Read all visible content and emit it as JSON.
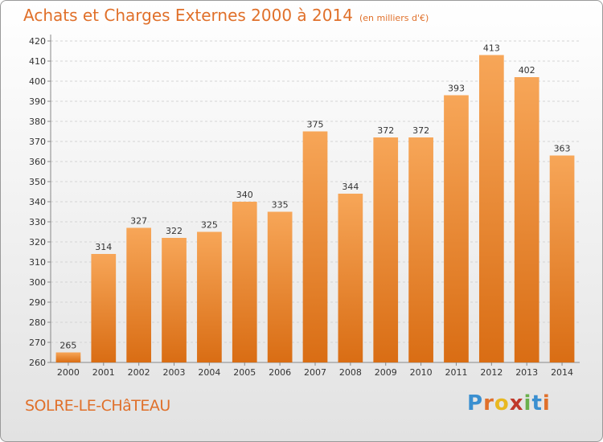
{
  "chart_data": {
    "type": "bar",
    "title": "Achats et Charges Externes 2000 à 2014",
    "subtitle": "(en milliers d'€)",
    "categories": [
      "2000",
      "2001",
      "2002",
      "2003",
      "2004",
      "2005",
      "2006",
      "2007",
      "2008",
      "2009",
      "2010",
      "2011",
      "2012",
      "2013",
      "2014"
    ],
    "values": [
      265,
      314,
      327,
      322,
      325,
      340,
      335,
      375,
      344,
      372,
      372,
      393,
      413,
      402,
      363
    ],
    "ylim": [
      260,
      420
    ],
    "yticks": [
      260,
      270,
      280,
      290,
      300,
      310,
      320,
      330,
      340,
      350,
      360,
      370,
      380,
      390,
      400,
      410,
      420
    ],
    "grid": true,
    "bar_color": "#f0902f"
  },
  "town": "SOLRE-LE-CHâTEAU",
  "logo": {
    "letters": [
      "P",
      "r",
      "o",
      "x",
      "i",
      "t",
      "i"
    ],
    "colors": [
      "#3a8fd0",
      "#e0702a",
      "#e8b820",
      "#c0392b",
      "#6ab04c",
      "#3a8fd0",
      "#e0702a"
    ]
  }
}
